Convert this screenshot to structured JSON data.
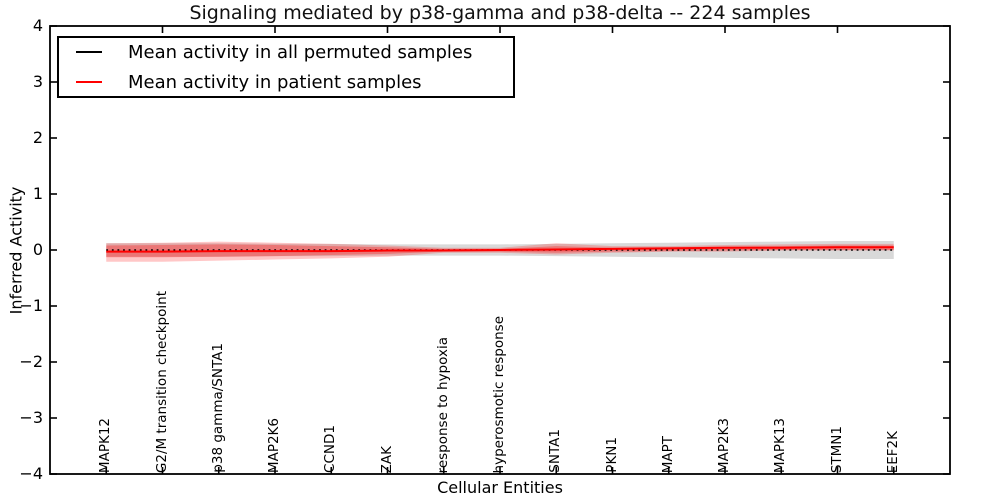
{
  "chart_data": {
    "type": "line",
    "title": "Signaling mediated by p38-gamma and p38-delta -- 224 samples",
    "xlabel": "Cellular Entities",
    "ylabel": "Inferred Activity",
    "ylim": [
      -4,
      4
    ],
    "yticks": [
      4,
      3,
      2,
      1,
      0,
      -1,
      -2,
      -3,
      -4
    ],
    "grid": false,
    "legend_position": "upper-left",
    "categories": [
      "MAPK12",
      "G2/M transition checkpoint",
      "p38 gamma/SNTA1",
      "MAP2K6",
      "CCND1",
      "ZAK",
      "response to hypoxia",
      "hyperosmotic response",
      "SNTA1",
      "PKN1",
      "MAPT",
      "MAP2K3",
      "MAPK13",
      "STMN1",
      "EEF2K"
    ],
    "series": [
      {
        "name": "Mean activity in all permuted samples",
        "color": "#000000",
        "style": "dotted",
        "values": [
          0,
          0,
          0,
          0,
          0,
          0,
          0,
          0,
          0,
          0,
          0,
          0,
          0,
          0,
          0
        ]
      },
      {
        "name": "Mean activity in patient samples",
        "color": "#ff0000",
        "style": "solid",
        "values": [
          -0.03,
          -0.03,
          -0.02,
          -0.02,
          -0.02,
          -0.01,
          -0.01,
          0.0,
          0.01,
          0.02,
          0.03,
          0.04,
          0.04,
          0.05,
          0.05
        ]
      }
    ],
    "bands": [
      {
        "name": "permuted-spread",
        "color": "#9a9a9a",
        "opacity": 0.38,
        "upper": [
          0.12,
          0.12,
          0.12,
          0.11,
          0.11,
          0.1,
          0.1,
          0.1,
          0.11,
          0.12,
          0.13,
          0.14,
          0.15,
          0.16,
          0.16
        ],
        "lower": [
          -0.12,
          -0.12,
          -0.12,
          -0.11,
          -0.11,
          -0.1,
          -0.1,
          -0.1,
          -0.11,
          -0.12,
          -0.13,
          -0.14,
          -0.15,
          -0.16,
          -0.16
        ]
      },
      {
        "name": "patient-spread-outer",
        "color": "#ff0000",
        "opacity": 0.22,
        "upper": [
          0.12,
          0.13,
          0.15,
          0.13,
          0.11,
          0.08,
          0.04,
          0.04,
          0.12,
          0.07,
          0.07,
          0.09,
          0.1,
          0.11,
          0.11
        ],
        "lower": [
          -0.21,
          -0.21,
          -0.19,
          -0.17,
          -0.15,
          -0.12,
          -0.05,
          -0.05,
          -0.08,
          -0.05,
          -0.03,
          -0.03,
          -0.01,
          -0.01,
          -0.01
        ]
      },
      {
        "name": "patient-spread-inner",
        "color": "#ff0000",
        "opacity": 0.3,
        "upper": [
          0.08,
          0.09,
          0.1,
          0.09,
          0.07,
          0.05,
          0.02,
          0.02,
          0.07,
          0.04,
          0.05,
          0.06,
          0.07,
          0.08,
          0.08
        ],
        "lower": [
          -0.13,
          -0.13,
          -0.12,
          -0.11,
          -0.09,
          -0.07,
          -0.03,
          -0.03,
          -0.05,
          -0.03,
          -0.02,
          -0.01,
          0.0,
          0.0,
          0.0
        ]
      }
    ],
    "axis_color": "#000000"
  },
  "legend": {
    "items": [
      {
        "label": "Mean activity in all permuted samples",
        "color": "#000000"
      },
      {
        "label": "Mean activity in patient samples",
        "color": "#ff0000"
      }
    ]
  }
}
